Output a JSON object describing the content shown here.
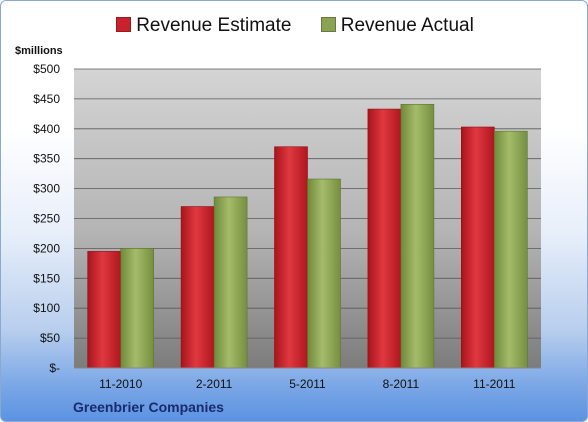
{
  "chart_data": {
    "type": "bar",
    "categories": [
      "11-2010",
      "2-2011",
      "5-2011",
      "8-2011",
      "11-2011"
    ],
    "series": [
      {
        "name": "Revenue Estimate",
        "values": [
          195,
          270,
          370,
          433,
          403
        ],
        "color": "#c8232c"
      },
      {
        "name": "Revenue Actual",
        "values": [
          200,
          286,
          316,
          441,
          396
        ],
        "color": "#8aa254"
      }
    ],
    "ylabel": "$millions",
    "ylim": [
      0,
      500
    ],
    "yticks": [
      0,
      50,
      100,
      150,
      200,
      250,
      300,
      350,
      400,
      450,
      500
    ],
    "ytick_labels": [
      "$-",
      "$50",
      "$100",
      "$150",
      "$200",
      "$250",
      "$300",
      "$350",
      "$400",
      "$450",
      "$500"
    ],
    "grid": true,
    "legend": "top"
  },
  "footer": {
    "company": "Greenbrier Companies"
  }
}
